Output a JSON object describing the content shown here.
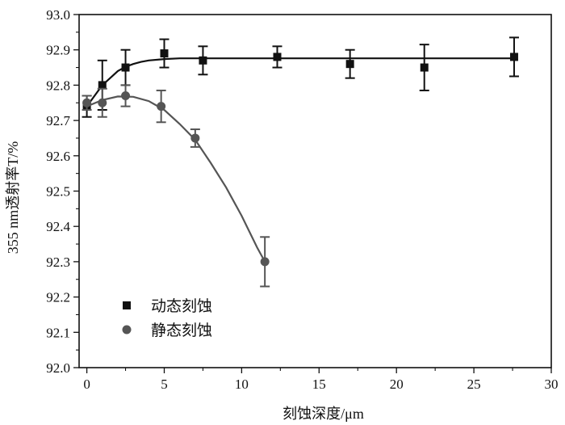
{
  "chart_data": {
    "type": "scatter",
    "title": "",
    "xlabel": "刻蚀深度/μm",
    "ylabel": "355 nm透射率T/%",
    "xlim": [
      -0.5,
      30
    ],
    "ylim": [
      92.0,
      93.0
    ],
    "xticks": [
      0,
      5,
      10,
      15,
      20,
      25,
      30
    ],
    "yticks": [
      "92.0",
      "92.1",
      "92.2",
      "92.3",
      "92.4",
      "92.5",
      "92.6",
      "92.7",
      "92.8",
      "92.9",
      "93.0"
    ],
    "grid": false,
    "legend_position": "bottom-left",
    "series": [
      {
        "name": "动态刻蚀",
        "marker": "square",
        "color": "#111111",
        "x": [
          0,
          1,
          2.5,
          5,
          7.5,
          12.3,
          17,
          21.8,
          27.6
        ],
        "y": [
          92.74,
          92.8,
          92.85,
          92.89,
          92.87,
          92.88,
          92.86,
          92.85,
          92.88
        ],
        "error": [
          0.03,
          0.07,
          0.05,
          0.04,
          0.04,
          0.03,
          0.04,
          0.065,
          0.055
        ],
        "fit": {
          "x": [
            0,
            0.5,
            1,
            1.5,
            2,
            2.5,
            3,
            3.5,
            4,
            5,
            6,
            7.5,
            10,
            15,
            20,
            25,
            27.6
          ],
          "y": [
            92.74,
            92.77,
            92.8,
            92.82,
            92.84,
            92.852,
            92.86,
            92.866,
            92.87,
            92.874,
            92.876,
            92.876,
            92.876,
            92.876,
            92.876,
            92.876,
            92.876
          ]
        }
      },
      {
        "name": "静态刻蚀",
        "marker": "circle",
        "color": "#555555",
        "x": [
          0,
          1,
          2.5,
          4.8,
          7,
          11.5
        ],
        "y": [
          92.75,
          92.75,
          92.77,
          92.74,
          92.65,
          92.3
        ],
        "error": [
          0.02,
          0.04,
          0.03,
          0.045,
          0.025,
          0.07
        ],
        "fit": {
          "x": [
            0,
            1,
            2,
            3,
            4,
            5,
            6,
            7,
            8,
            9,
            10,
            11,
            11.5
          ],
          "y": [
            92.74,
            92.758,
            92.768,
            92.767,
            92.755,
            92.73,
            92.69,
            92.645,
            92.58,
            92.51,
            92.43,
            92.34,
            92.3
          ]
        }
      }
    ]
  }
}
